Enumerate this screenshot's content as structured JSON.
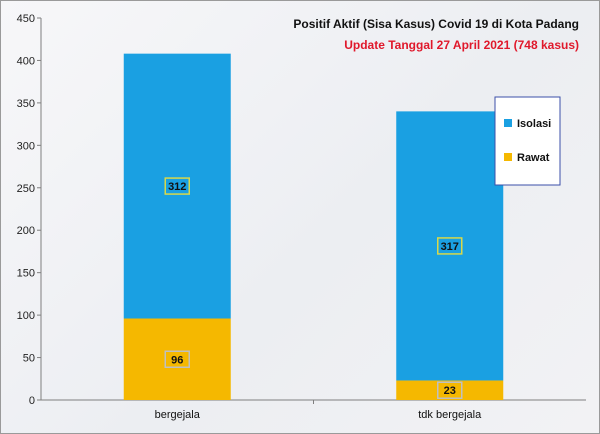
{
  "chart_data": {
    "type": "bar",
    "stacked": true,
    "title": "Positif Aktif  (Sisa Kasus) Covid 19 di Kota Padang",
    "subtitle": "Update Tanggal 27 April 2021 (748 kasus)",
    "categories": [
      "bergejala",
      "tdk bergejala"
    ],
    "series": [
      {
        "name": "Rawat",
        "values": [
          96,
          23
        ],
        "color": "#f5b800"
      },
      {
        "name": "Isolasi",
        "values": [
          312,
          317
        ],
        "color": "#1aa0e2"
      }
    ],
    "ylim": [
      0,
      450
    ],
    "yticks": [
      "0",
      "50",
      "100",
      "150",
      "200",
      "250",
      "300",
      "350",
      "400",
      "450"
    ],
    "xlabel": "",
    "ylabel": "",
    "grid": false,
    "legend": {
      "placement": "right",
      "entries": [
        "Isolasi",
        "Rawat"
      ]
    }
  }
}
